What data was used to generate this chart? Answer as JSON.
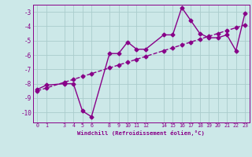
{
  "xlabel": "Windchill (Refroidissement éolien,°C)",
  "x_hours": [
    0,
    1,
    3,
    4,
    5,
    6,
    8,
    9,
    10,
    11,
    12,
    14,
    15,
    16,
    17,
    18,
    19,
    20,
    21,
    22,
    23
  ],
  "y_actual": [
    -8.4,
    -8.1,
    -8.0,
    -8.0,
    -9.9,
    -10.3,
    -5.9,
    -5.9,
    -5.1,
    -5.6,
    -5.6,
    -4.6,
    -4.6,
    -2.7,
    -3.6,
    -4.5,
    -4.8,
    -4.8,
    -4.6,
    -5.7,
    -3.1
  ],
  "y_trend": [
    -8.5,
    -8.3,
    -7.9,
    -7.7,
    -7.5,
    -7.3,
    -6.9,
    -6.7,
    -6.5,
    -6.3,
    -6.1,
    -5.7,
    -5.5,
    -5.3,
    -5.1,
    -4.9,
    -4.7,
    -4.5,
    -4.3,
    -4.1,
    -3.9
  ],
  "xticks": [
    0,
    1,
    3,
    4,
    5,
    6,
    8,
    9,
    10,
    11,
    12,
    14,
    15,
    16,
    17,
    18,
    19,
    20,
    21,
    22,
    23
  ],
  "yticks": [
    -10,
    -9,
    -8,
    -7,
    -6,
    -5,
    -4,
    -3
  ],
  "ylim": [
    -10.7,
    -2.5
  ],
  "xlim": [
    -0.5,
    23.5
  ],
  "line_color": "#880088",
  "bg_color": "#cce8e8",
  "grid_color": "#aacccc",
  "marker": "D",
  "marker_size": 2.5,
  "line_width": 1.0
}
